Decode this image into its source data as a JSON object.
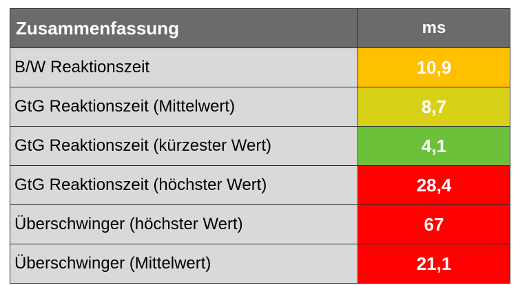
{
  "header": {
    "title": "Zusammenfassung",
    "unit": "ms"
  },
  "rows": [
    {
      "label": "B/W Reaktionszeit",
      "value": "10,9",
      "color": "#ffc000"
    },
    {
      "label": "GtG Reaktionszeit (Mittelwert)",
      "value": "8,7",
      "color": "#d8d118"
    },
    {
      "label": "GtG Reaktionszeit (kürzester Wert)",
      "value": "4,1",
      "color": "#6cc13a"
    },
    {
      "label": "GtG Reaktionszeit (höchster Wert)",
      "value": "28,4",
      "color": "#ff0000"
    },
    {
      "label": "Überschwinger (höchster Wert)",
      "value": "67",
      "color": "#ff0000"
    },
    {
      "label": "Überschwinger (Mittelwert)",
      "value": "21,1",
      "color": "#ff0000"
    }
  ]
}
